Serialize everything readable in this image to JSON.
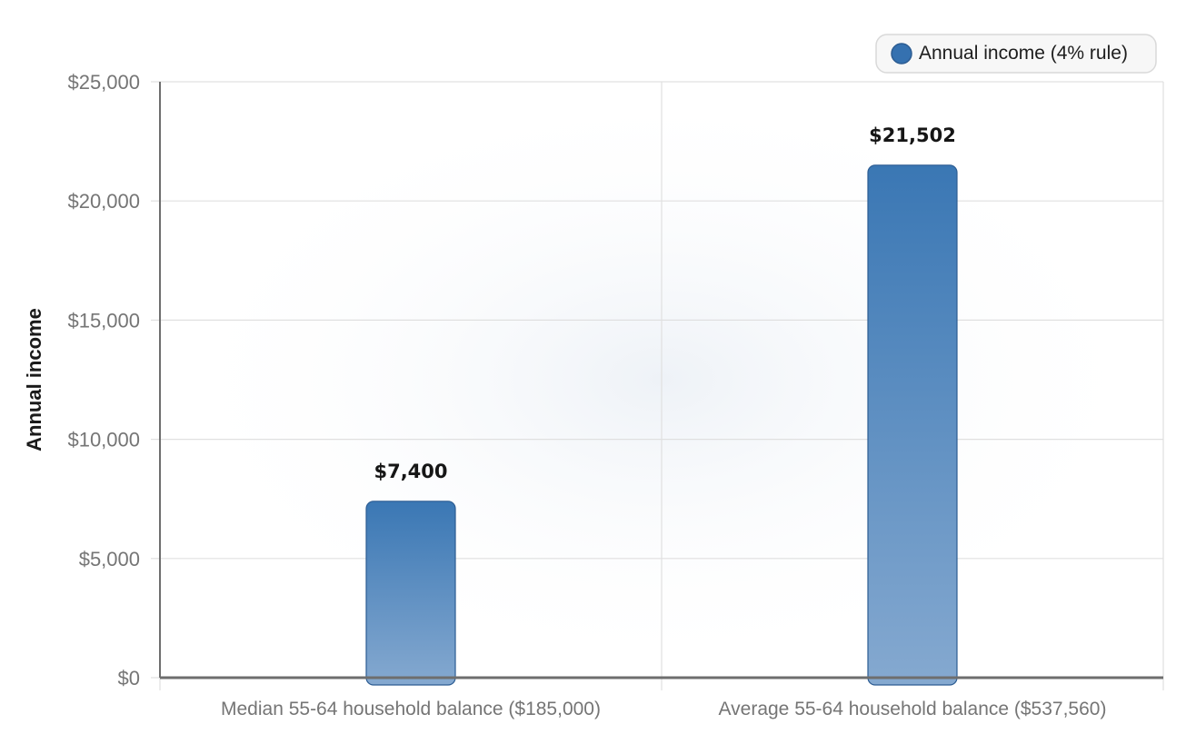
{
  "chart_data": {
    "type": "bar",
    "title": "",
    "xlabel": "",
    "ylabel": "Annual income",
    "categories": [
      "Median 55-64 household balance ($185,000)",
      "Average 55-64 household balance ($537,560)"
    ],
    "series": [
      {
        "name": "Annual income (4% rule)",
        "values": [
          7400,
          21502
        ],
        "data_labels": [
          "$7,400",
          "$21,502"
        ]
      }
    ],
    "ylim": [
      0,
      25000
    ],
    "yticks": [
      0,
      5000,
      10000,
      15000,
      20000,
      25000
    ],
    "ytick_labels": [
      "$0",
      "$5,000",
      "$10,000",
      "$15,000",
      "$20,000",
      "$25,000"
    ],
    "grid": true,
    "legend_position": "top-right",
    "colors": {
      "bar_top": "#3a77b4",
      "bar_bottom": "#85a9d0",
      "bar_stroke": "#2c5c92",
      "legend_swatch": "#3571b0",
      "grid": "#e0e0e0",
      "axis": "#6e6e6e"
    }
  }
}
